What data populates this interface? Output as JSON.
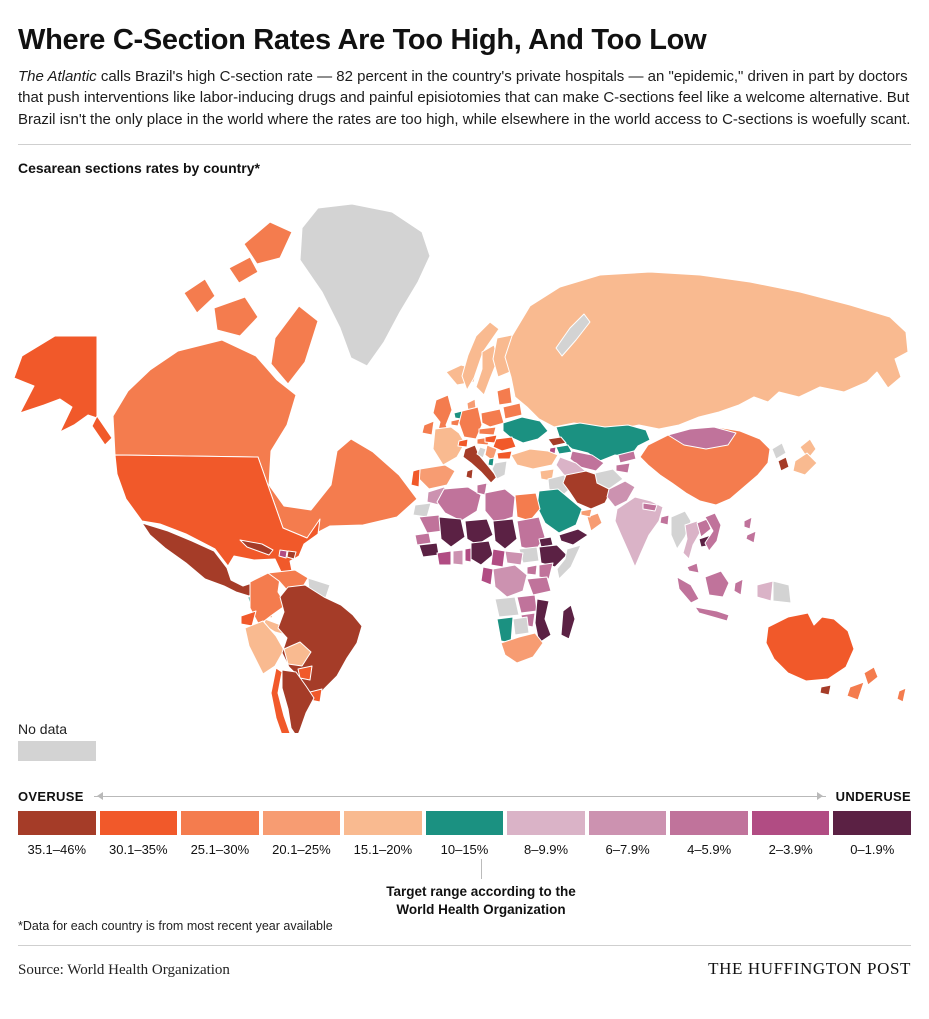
{
  "header": {
    "title": "Where C-Section Rates Are Too High, And Too Low",
    "intro_italic": "The Atlantic",
    "intro_rest": " calls Brazil's high C-section rate — 82 percent in the country's private hospitals — an \"epidemic,\" driven in part by doctors that push interventions like labor-inducing drugs and painful episiotomies that can make C-sections feel like a welcome alternative. But Brazil isn't the only place in the world where the rates are too high, while elsewhere in the world access to C-sections is woefully scant."
  },
  "map": {
    "kicker": "Cesarean sections rates by country*",
    "no_data_label": "No data"
  },
  "legend": {
    "overuse_label": "OVERUSE",
    "underuse_label": "UNDERUSE",
    "target_note_line1": "Target range according to the",
    "target_note_line2": "World Health Organization"
  },
  "footnote": "*Data for each country is from most recent year available",
  "footer": {
    "source": "Source: World Health Organization",
    "brand": "THE HUFFINGTON POST"
  },
  "chart_data": {
    "type": "heatmap",
    "subtype": "choropleth-world-map",
    "title": "Cesarean sections rates by country*",
    "legend_position": "bottom",
    "scale_left_label": "OVERUSE",
    "scale_right_label": "UNDERUSE",
    "target_range": "10–15%",
    "categories": [
      "35.1–46%",
      "30.1–35%",
      "25.1–30%",
      "20.1–25%",
      "15.1–20%",
      "10–15%",
      "8–9.9%",
      "6–7.9%",
      "4–5.9%",
      "2–3.9%",
      "0–1.9%"
    ],
    "colors": [
      "#a53c28",
      "#f1592a",
      "#f47c4e",
      "#f79c72",
      "#f9ba90",
      "#1b9181",
      "#dab3c7",
      "#cc92b0",
      "#c0739b",
      "#b14c83",
      "#5b2144"
    ],
    "no_data": {
      "label": "No data",
      "color": "#d3d3d3"
    },
    "country_categories": {
      "greenland": "no_data",
      "novaya-zemlya": "no_data",
      "guyana-suriname": "no_data",
      "bosnia": "no_data",
      "greece": "no_data",
      "iraq": "no_data",
      "afghanistan": "no_data",
      "somalia": "no_data",
      "south-sudan": "no_data",
      "angola": "no_data",
      "botswana": "no_data",
      "western-sahara": "no_data",
      "myanmar": "no_data",
      "north-korea": "no_data",
      "papua-new-guinea": "no_data",
      "mexico": "35.1–46%",
      "cuba": "35.1–46%",
      "dominican-republic": "35.1–46%",
      "brazil": "35.1–46%",
      "argentina": "35.1–46%",
      "italy": "35.1–46%",
      "georgia": "35.1–46%",
      "iran": "35.1–46%",
      "south-korea": "35.1–46%",
      "tasmania": "35.1–46%",
      "united-states": "30.1–35%",
      "chile": "30.1–35%",
      "ecuador": "30.1–35%",
      "paraguay": "30.1–35%",
      "uruguay": "30.1–35%",
      "portugal": "30.1–35%",
      "switzerland": "30.1–35%",
      "hungary": "30.1–35%",
      "romania": "30.1–35%",
      "bulgaria": "30.1–35%",
      "australia": "30.1–35%",
      "canada": "25.1–30%",
      "colombia": "25.1–30%",
      "venezuela": "25.1–30%",
      "united-kingdom": "25.1–30%",
      "ireland": "25.1–30%",
      "germany": "25.1–30%",
      "belgium": "25.1–30%",
      "poland": "25.1–30%",
      "austria": "25.1–30%",
      "czech-slovakia": "25.1–30%",
      "baltic-states": "25.1–30%",
      "belarus": "25.1–30%",
      "egypt": "25.1–30%",
      "china": "25.1–30%",
      "new-zealand": "25.1–30%",
      "new-caledonia": "25.1–30%",
      "spain": "20.1–25%",
      "denmark": "20.1–25%",
      "serbia": "20.1–25%",
      "nicaragua": "20.1–25%",
      "south-africa": "20.1–25%",
      "oman": "20.1–25%",
      "gulf-states": "20.1–25%",
      "russia": "15.1–20%",
      "norway": "15.1–20%",
      "sweden": "15.1–20%",
      "finland": "15.1–20%",
      "iceland": "15.1–20%",
      "france": "15.1–20%",
      "turkey": "15.1–20%",
      "syria": "15.1–20%",
      "japan": "15.1–20%",
      "peru": "15.1–20%",
      "bolivia": "15.1–20%",
      "honduras": "15.1–20%",
      "costa-rica-panama": "15.1–20%",
      "ukraine": "10–15%",
      "netherlands": "10–15%",
      "kazakhstan": "10–15%",
      "saudi-arabia": "10–15%",
      "guatemala": "10–15%",
      "namibia": "10–15%",
      "albania": "10–15%",
      "azerbaijan": "10–15%",
      "india": "8–9.9%",
      "thailand": "8–9.9%",
      "turkmenistan": "8–9.9%",
      "papua-indonesia": "8–9.9%",
      "morocco": "6–7.9%",
      "ghana": "6–7.9%",
      "pakistan": "6–7.9%",
      "central-african-republic": "6–7.9%",
      "dr-congo": "6–7.9%",
      "algeria": "4–5.9%",
      "tunisia": "4–5.9%",
      "libya": "4–5.9%",
      "sudan": "4–5.9%",
      "mauritania": "4–5.9%",
      "senegal": "4–5.9%",
      "kenya": "4–5.9%",
      "uganda": "4–5.9%",
      "tanzania": "4–5.9%",
      "zambia": "4–5.9%",
      "zimbabwe": "4–5.9%",
      "mongolia": "4–5.9%",
      "uzbekistan": "4–5.9%",
      "kyrgyzstan": "4–5.9%",
      "tajikistan": "4–5.9%",
      "laos": "4–5.9%",
      "vietnam": "4–5.9%",
      "philippines": "4–5.9%",
      "malaysia": "4–5.9%",
      "indonesia": "4–5.9%",
      "nepal": "4–5.9%",
      "bangladesh": "4–5.9%",
      "haiti": "2–3.9%",
      "ivory-coast": "2–3.9%",
      "togo-benin": "2–3.9%",
      "cameroon": "2–3.9%",
      "congo-gabon": "2–3.9%",
      "armenia": "2–3.9%",
      "mali": "0–1.9%",
      "niger": "0–1.9%",
      "chad": "0–1.9%",
      "guinea": "0–1.9%",
      "nigeria": "0–1.9%",
      "eritrea": "0–1.9%",
      "ethiopia": "0–1.9%",
      "yemen": "0–1.9%",
      "mozambique-malawi": "0–1.9%",
      "madagascar": "0–1.9%",
      "cambodia": "0–1.9%"
    }
  }
}
